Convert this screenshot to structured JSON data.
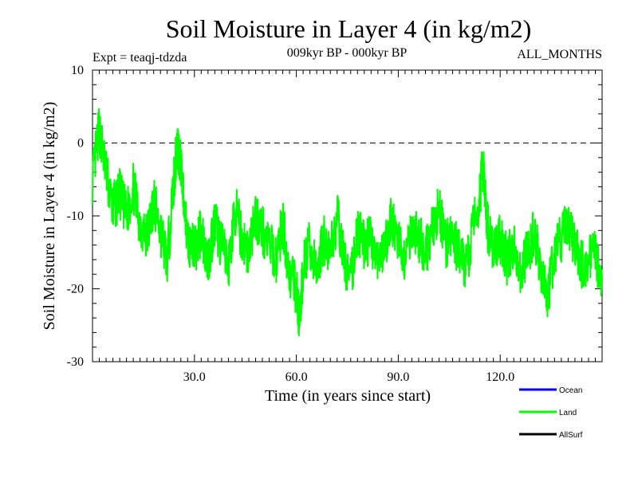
{
  "chart_data": {
    "type": "line",
    "title": "Soil Moisture in Layer 4 (in kg/m2)",
    "subtitle_left": "Expt = teaqj-tdzda",
    "subtitle_center": "009kyr BP - 000kyr BP",
    "subtitle_right": "ALL_MONTHS",
    "xlabel": "Time (in years since start)",
    "ylabel": "Soil Moisture in Layer 4 (in kg/m2)",
    "xlim": [
      0,
      150
    ],
    "ylim": [
      -30,
      10
    ],
    "x_ticks": [
      30,
      60,
      90,
      120
    ],
    "x_tick_labels": [
      "30.0",
      "60.0",
      "90.0",
      "120.0"
    ],
    "y_ticks": [
      -30,
      -20,
      -10,
      0,
      10
    ],
    "y_tick_labels": [
      "-30",
      "-20",
      "-10",
      "0",
      "10"
    ],
    "reference_line": 0,
    "legend": [
      {
        "name": "Ocean",
        "color": "#0000ff"
      },
      {
        "name": "Land",
        "color": "#00ff00"
      },
      {
        "name": "AllSurf",
        "color": "#000000"
      }
    ],
    "series": [
      {
        "name": "Land",
        "color": "#00ff00",
        "x": [
          0,
          2,
          4,
          6,
          8,
          10,
          12,
          14,
          16,
          18,
          20,
          22,
          24,
          25,
          26,
          28,
          30,
          32,
          34,
          36,
          38,
          40,
          42,
          44,
          46,
          48,
          50,
          52,
          54,
          56,
          58,
          60,
          61,
          62,
          64,
          66,
          68,
          70,
          72,
          74,
          76,
          78,
          80,
          82,
          84,
          86,
          88,
          90,
          92,
          94,
          96,
          98,
          100,
          102,
          104,
          106,
          108,
          110,
          112,
          114,
          115,
          116,
          118,
          120,
          122,
          124,
          126,
          128,
          130,
          132,
          134,
          136,
          138,
          140,
          142,
          144,
          146,
          148,
          150
        ],
        "values": [
          -5,
          2,
          -4,
          -9,
          -7,
          -10,
          -6,
          -11,
          -13,
          -8,
          -12,
          -16,
          -5,
          0,
          -3,
          -13,
          -15,
          -12,
          -16,
          -11,
          -14,
          -17,
          -9,
          -13,
          -15,
          -10,
          -12,
          -14,
          -16,
          -11,
          -18,
          -20,
          -25,
          -17,
          -14,
          -18,
          -13,
          -15,
          -10,
          -16,
          -19,
          -12,
          -14,
          -13,
          -17,
          -15,
          -10,
          -14,
          -16,
          -11,
          -13,
          -15,
          -12,
          -9,
          -14,
          -13,
          -15,
          -17,
          -12,
          -7,
          -3,
          -11,
          -15,
          -13,
          -16,
          -14,
          -18,
          -15,
          -12,
          -17,
          -21,
          -15,
          -13,
          -11,
          -14,
          -17,
          -16,
          -15,
          -19
        ]
      }
    ]
  }
}
